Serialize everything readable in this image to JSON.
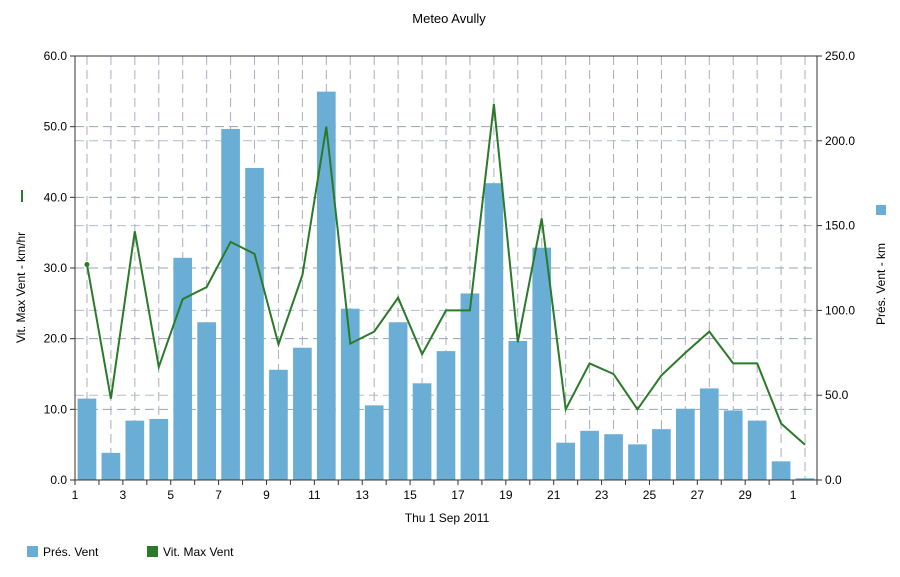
{
  "chart_data": {
    "type": "bar",
    "title": "Meteo  Avully",
    "xlabel": "Thu 1 Sep 2011",
    "x_tick_labels": [
      "1",
      "3",
      "5",
      "7",
      "9",
      "11",
      "13",
      "15",
      "17",
      "19",
      "21",
      "23",
      "25",
      "27",
      "29",
      "1"
    ],
    "days": [
      "1",
      "2",
      "3",
      "4",
      "5",
      "6",
      "7",
      "8",
      "9",
      "10",
      "11",
      "12",
      "13",
      "14",
      "15",
      "16",
      "17",
      "18",
      "19",
      "20",
      "21",
      "22",
      "23",
      "24",
      "25",
      "26",
      "27",
      "28",
      "29",
      "30",
      "1"
    ],
    "left_axis": {
      "label": "Vit. Max Vent - km/hr",
      "ylim": [
        0,
        60
      ],
      "tick_labels": [
        "0.0",
        "10.0",
        "20.0",
        "30.0",
        "40.0",
        "50.0",
        "60.0"
      ]
    },
    "right_axis": {
      "label": "Prés. Vent - km",
      "ylim": [
        0,
        250
      ],
      "tick_labels": [
        "0.0",
        "50.0",
        "100.0",
        "150.0",
        "200.0",
        "250.0"
      ]
    },
    "grid": true,
    "legend_position": "bottom-left",
    "series": [
      {
        "name": "Prés. Vent",
        "kind": "bar",
        "axis": "right",
        "color": "#6aaed6",
        "values": [
          48,
          16,
          35,
          36,
          131,
          93,
          207,
          184,
          65,
          78,
          229,
          101,
          44,
          93,
          57,
          76,
          110,
          175,
          82,
          137,
          22,
          29,
          27,
          21,
          30,
          42,
          54,
          41,
          35,
          11,
          1
        ]
      },
      {
        "name": "Vit. Max Vent",
        "kind": "line",
        "axis": "left",
        "color": "#2a7a2a",
        "values": [
          30.5,
          11.5,
          35.2,
          16.0,
          25.6,
          27.3,
          33.7,
          32.0,
          19.2,
          29.0,
          50.0,
          19.3,
          21.0,
          25.8,
          17.8,
          24.0,
          24.0,
          53.2,
          19.5,
          37.0,
          10.0,
          16.5,
          15.0,
          10.0,
          14.8,
          18.0,
          21.0,
          16.5,
          16.5,
          8.0,
          5.0
        ]
      }
    ]
  }
}
